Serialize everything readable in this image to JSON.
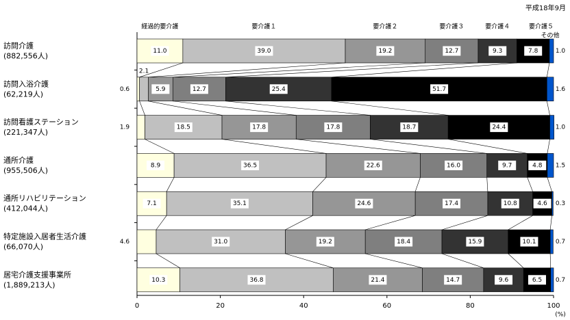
{
  "chart_data": {
    "type": "stacked-bar-100",
    "date_note": "平成18年9月",
    "categories": [
      "訪問介護",
      "訪問入浴介護",
      "訪問看護ステーション",
      "通所介護",
      "通所リハビリテーション",
      "特定施設入居者生活介護",
      "居宅介護支援事業所"
    ],
    "category_counts": [
      "(882,556人)",
      "(62,219人)",
      "(221,347人)",
      "(955,506人)",
      "(412,044人)",
      "(66,070人)",
      "(1,889,213人)"
    ],
    "series": [
      {
        "name": "経過的要介護",
        "color": "#ffffe0",
        "values": [
          11.0,
          0.6,
          1.9,
          8.9,
          7.1,
          4.6,
          10.3
        ],
        "value_labels": [
          "11.0",
          "0.6",
          "1.9",
          "8.9",
          "7.1",
          "4.6",
          "10.3"
        ]
      },
      {
        "name": "要介護１",
        "color": "#c0c0c0",
        "values": [
          39.0,
          2.1,
          18.5,
          36.5,
          35.1,
          31.0,
          36.8
        ],
        "value_labels": [
          "39.0",
          "2.1",
          "18.5",
          "36.5",
          "35.1",
          "31.0",
          "36.8"
        ]
      },
      {
        "name": "要介護２",
        "color": "#969696",
        "values": [
          19.2,
          5.9,
          17.8,
          22.6,
          24.6,
          19.2,
          21.4
        ],
        "value_labels": [
          "19.2",
          "5.9",
          "17.8",
          "22.6",
          "24.6",
          "19.2",
          "21.4"
        ]
      },
      {
        "name": "要介護３",
        "color": "#7f7f7f",
        "values": [
          12.7,
          12.7,
          17.8,
          16.0,
          17.4,
          18.4,
          14.7
        ],
        "value_labels": [
          "12.7",
          "12.7",
          "17.8",
          "16.0",
          "17.4",
          "18.4",
          "14.7"
        ]
      },
      {
        "name": "要介護４",
        "color": "#333333",
        "values": [
          9.3,
          25.4,
          18.7,
          9.7,
          10.8,
          15.9,
          9.6
        ],
        "value_labels": [
          "9.3",
          "25.4",
          "18.7",
          "9.7",
          "10.8",
          "15.9",
          "9.6"
        ]
      },
      {
        "name": "要介護５",
        "color": "#000000",
        "values": [
          7.8,
          51.7,
          24.4,
          4.8,
          4.6,
          10.1,
          6.5
        ],
        "value_labels": [
          "7.8",
          "51.7",
          "24.4",
          "4.8",
          "4.6",
          "10.1",
          "6.5"
        ]
      },
      {
        "name": "その他",
        "color": "#0055cc",
        "values": [
          1.0,
          1.6,
          1.0,
          1.5,
          0.3,
          0.7,
          0.7
        ],
        "value_labels": [
          "1.0",
          "1.6",
          "1.0",
          "1.5",
          "0.3",
          "0.7",
          "0.7"
        ]
      }
    ],
    "xlim": [
      0,
      100
    ],
    "xticks": [
      0,
      20,
      40,
      60,
      80,
      100
    ],
    "x_unit": "(%)"
  }
}
